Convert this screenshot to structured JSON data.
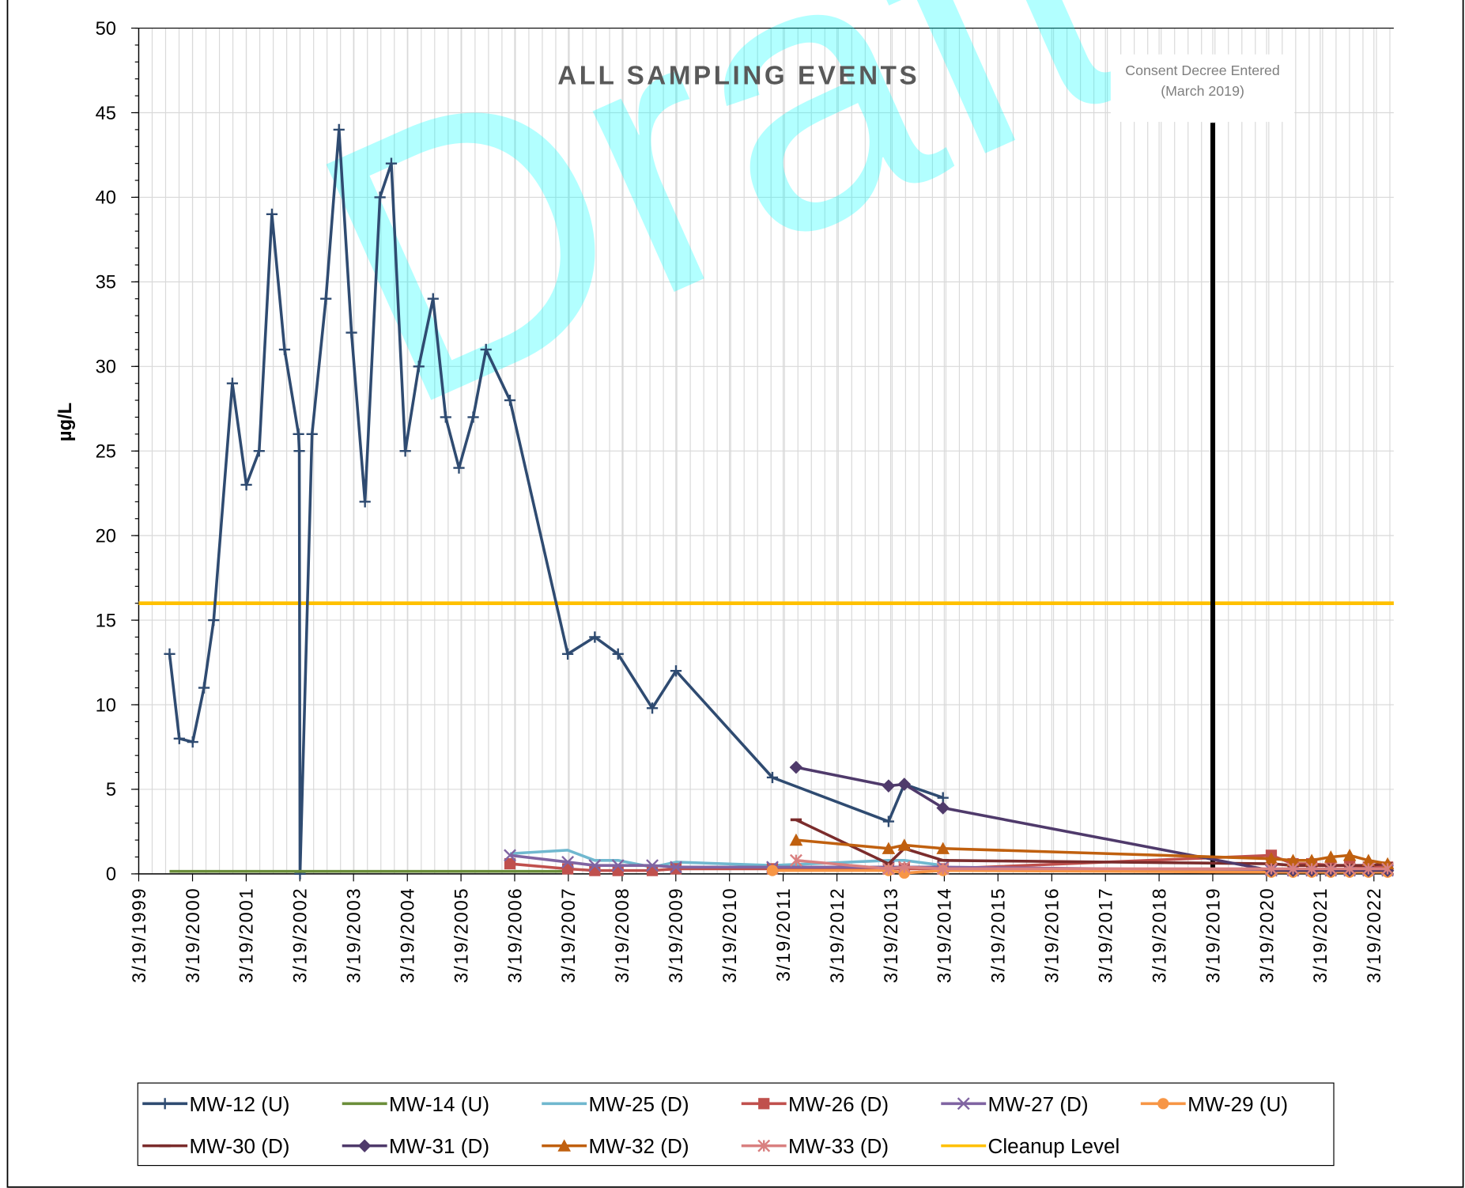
{
  "chart_data": {
    "type": "line",
    "title": "ALL SAMPLING EVENTS",
    "y_label": "µg/L",
    "watermark": "Draft",
    "ylim": [
      0,
      50
    ],
    "yticks": [
      0,
      5,
      10,
      15,
      20,
      25,
      30,
      35,
      40,
      45,
      50
    ],
    "xlim": [
      "3/19/1999",
      "8/1/2022"
    ],
    "xticks": [
      "3/19/1999",
      "3/19/2000",
      "3/19/2001",
      "3/19/2002",
      "3/19/2003",
      "3/19/2004",
      "3/19/2005",
      "3/19/2006",
      "3/19/2007",
      "3/19/2008",
      "3/19/2009",
      "3/19/2010",
      "3/19/2011",
      "3/19/2012",
      "3/19/2013",
      "3/19/2014",
      "3/19/2015",
      "3/19/2016",
      "3/19/2017",
      "3/19/2018",
      "3/19/2019",
      "3/19/2020",
      "3/19/2021",
      "3/19/2022"
    ],
    "grid": true,
    "legend": "bottom",
    "series": [
      {
        "name": "MW-12 (U)",
        "color": "#2f4b71",
        "marker": "plus",
        "x": [
          "10/15/1999",
          "12/20/1999",
          "3/20/2000",
          "6/5/2000",
          "8/10/2000",
          "12/15/2000",
          "3/20/2001",
          "6/15/2001",
          "9/10/2001",
          "12/5/2001",
          "3/10/2002",
          "3/15/2002",
          "3/20/2002",
          "6/10/2002",
          "9/12/2002",
          "12/10/2002",
          "3/5/2003",
          "6/5/2003",
          "9/15/2003",
          "12/1/2003",
          "3/5/2004",
          "6/5/2004",
          "9/10/2004",
          "12/5/2004",
          "3/5/2005",
          "6/10/2005",
          "9/5/2005",
          "2/15/2006",
          "3/15/2007",
          "9/15/2007",
          "2/20/2008",
          "10/10/2008",
          "3/20/2009",
          "1/5/2011",
          "3/5/2013",
          "6/20/2013",
          "3/10/2014"
        ],
        "values": [
          13,
          8,
          7.8,
          11,
          15,
          29,
          23,
          25,
          39,
          31,
          26,
          25,
          0,
          26,
          34,
          44,
          32,
          22,
          40,
          42,
          25,
          30,
          34,
          27,
          24,
          27,
          31,
          28,
          13,
          14,
          13,
          9.8,
          12,
          5.7,
          3.1,
          5.3,
          4.5
        ]
      },
      {
        "name": "MW-14 (U)",
        "color": "#6b8e3a",
        "marker": "none",
        "x": [
          "10/15/1999",
          "3/20/2001",
          "3/10/2002",
          "3/5/2003",
          "3/5/2004",
          "3/5/2005",
          "2/15/2006",
          "3/15/2007"
        ],
        "values": [
          0.15,
          0.15,
          0.15,
          0.15,
          0.15,
          0.15,
          0.15,
          0.15
        ]
      },
      {
        "name": "MW-25 (D)",
        "color": "#70b8cf",
        "marker": "none",
        "x": [
          "2/15/2006",
          "3/15/2007",
          "9/15/2007",
          "2/20/2008",
          "10/10/2008",
          "3/20/2009",
          "1/5/2011",
          "3/5/2013",
          "6/20/2013",
          "3/10/2014"
        ],
        "values": [
          1.2,
          1.4,
          0.8,
          0.8,
          0.4,
          0.7,
          0.5,
          0.8,
          0.8,
          0.5
        ]
      },
      {
        "name": "MW-26 (D)",
        "color": "#c0504d",
        "marker": "square",
        "x": [
          "2/15/2006",
          "3/15/2007",
          "9/15/2007",
          "2/20/2008",
          "10/10/2008",
          "3/20/2009",
          "1/5/2011",
          "3/5/2013",
          "6/20/2013",
          "3/10/2014",
          "4/20/2020",
          "9/15/2020",
          "1/20/2021",
          "5/30/2021",
          "10/5/2021",
          "2/10/2022",
          "6/20/2022"
        ],
        "values": [
          0.6,
          0.3,
          0.2,
          0.2,
          0.2,
          0.3,
          0.3,
          0.3,
          0.3,
          0.3,
          1.1,
          0.6,
          0.6,
          0.5,
          0.5,
          0.4,
          0.4
        ]
      },
      {
        "name": "MW-27 (D)",
        "color": "#8064a2",
        "marker": "x",
        "x": [
          "2/15/2006",
          "3/15/2007",
          "9/15/2007",
          "2/20/2008",
          "10/10/2008",
          "3/20/2009",
          "1/5/2011",
          "3/5/2013",
          "6/20/2013",
          "3/10/2014",
          "4/20/2020",
          "9/15/2020",
          "1/20/2021",
          "5/30/2021",
          "10/5/2021",
          "2/10/2022",
          "6/20/2022"
        ],
        "values": [
          1.1,
          0.7,
          0.5,
          0.5,
          0.5,
          0.4,
          0.4,
          0.4,
          0.4,
          0.4,
          0.2,
          0.2,
          0.2,
          0.2,
          0.2,
          0.2,
          0.2
        ]
      },
      {
        "name": "MW-29 (U)",
        "color": "#f79646",
        "marker": "circle",
        "x": [
          "1/5/2011",
          "3/5/2013",
          "6/20/2013",
          "3/10/2014",
          "4/20/2020",
          "9/15/2020",
          "1/20/2021",
          "5/30/2021",
          "10/5/2021",
          "2/10/2022",
          "6/20/2022"
        ],
        "values": [
          0.2,
          0.2,
          0.05,
          0.2,
          0.1,
          0.1,
          0.1,
          0.1,
          0.1,
          0.1,
          0.1
        ]
      },
      {
        "name": "MW-30 (D)",
        "color": "#7b2c2c",
        "marker": "dash",
        "x": [
          "6/15/2011",
          "3/5/2013",
          "6/20/2013",
          "3/10/2014",
          "4/20/2020",
          "9/15/2020",
          "1/20/2021",
          "5/30/2021",
          "10/5/2021",
          "2/10/2022",
          "6/20/2022"
        ],
        "values": [
          3.2,
          0.6,
          1.5,
          0.8,
          0.6,
          0.5,
          0.5,
          0.5,
          0.5,
          0.5,
          0.6
        ]
      },
      {
        "name": "MW-31 (D)",
        "color": "#4f3a6b",
        "marker": "diamond",
        "x": [
          "6/15/2011",
          "3/5/2013",
          "6/20/2013",
          "3/10/2014",
          "4/20/2020",
          "9/15/2020",
          "1/20/2021",
          "5/30/2021",
          "10/5/2021",
          "2/10/2022",
          "6/20/2022"
        ],
        "values": [
          6.3,
          5.2,
          5.3,
          3.9,
          0.2,
          0.2,
          0.2,
          0.2,
          0.2,
          0.2,
          0.2
        ]
      },
      {
        "name": "MW-32 (D)",
        "color": "#c0600f",
        "marker": "triangle",
        "x": [
          "6/15/2011",
          "3/5/2013",
          "6/20/2013",
          "3/10/2014",
          "4/20/2020",
          "9/15/2020",
          "1/20/2021",
          "5/30/2021",
          "10/5/2021",
          "2/10/2022",
          "6/20/2022"
        ],
        "values": [
          2.0,
          1.5,
          1.7,
          1.5,
          0.9,
          0.8,
          0.8,
          1.0,
          1.1,
          0.8,
          0.6
        ]
      },
      {
        "name": "MW-33 (D)",
        "color": "#d98080",
        "marker": "asterisk",
        "x": [
          "6/15/2011",
          "3/5/2013",
          "6/20/2013",
          "3/10/2014",
          "4/20/2020",
          "9/15/2020",
          "1/20/2021",
          "5/30/2021",
          "10/5/2021",
          "2/10/2022",
          "6/20/2022"
        ],
        "values": [
          0.8,
          0.3,
          0.4,
          0.3,
          0.3,
          0.3,
          0.3,
          0.3,
          0.3,
          0.3,
          0.3
        ]
      }
    ],
    "cleanup_level": {
      "name": "Cleanup Level",
      "value": 16,
      "color": "#ffc000"
    },
    "annotation": {
      "text": [
        "Consent Decree Entered",
        "(March 2019)"
      ],
      "x": "3/19/2019",
      "color": "#000000"
    }
  }
}
